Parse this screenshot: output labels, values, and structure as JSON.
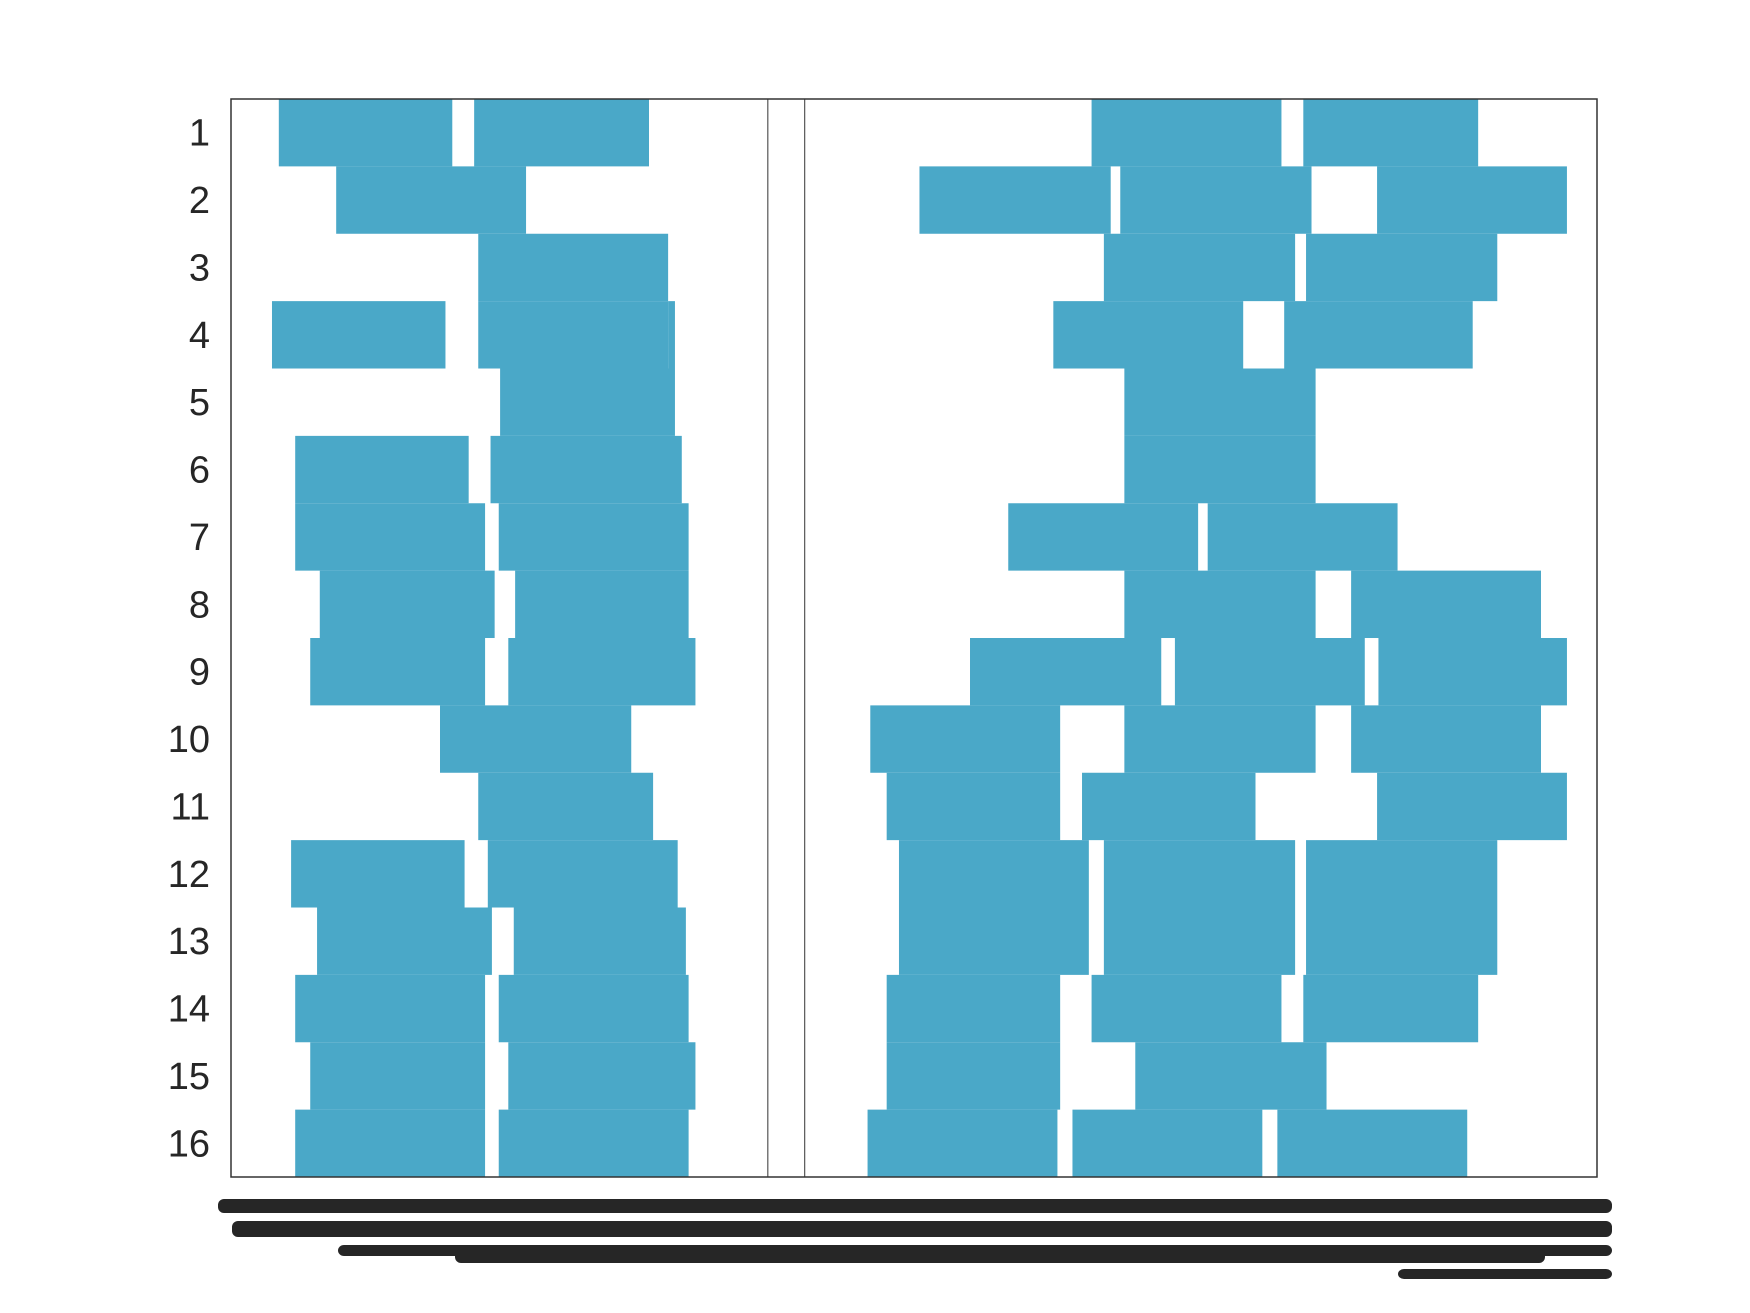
{
  "chart_data": {
    "type": "bar",
    "orientation": "horizontal-broken",
    "color": "#4aa8c8",
    "frame_color": "#333333",
    "categories": [
      "1",
      "2",
      "3",
      "4",
      "5",
      "6",
      "7",
      "8",
      "9",
      "10",
      "11",
      "12",
      "13",
      "14",
      "15",
      "16"
    ],
    "xlim": [
      0,
      100
    ],
    "gap": [
      39.3,
      42.0
    ],
    "x_tick_labels_legible": false,
    "rows": [
      {
        "row": "1",
        "segments": [
          [
            3.5,
            16.2
          ],
          [
            17.8,
            30.6
          ],
          [
            63.0,
            76.9
          ],
          [
            78.5,
            91.3
          ]
        ]
      },
      {
        "row": "2",
        "segments": [
          [
            7.7,
            21.6
          ],
          [
            50.4,
            64.4
          ],
          [
            65.1,
            79.1
          ],
          [
            83.9,
            97.8
          ]
        ]
      },
      {
        "row": "3",
        "segments": [
          [
            18.1,
            32.0
          ],
          [
            63.9,
            77.9
          ],
          [
            78.7,
            92.7
          ]
        ]
      },
      {
        "row": "4",
        "segments": [
          [
            3.0,
            15.7
          ],
          [
            18.1,
            32.0
          ],
          [
            32.0,
            32.5
          ],
          [
            60.2,
            74.1
          ],
          [
            77.1,
            90.9
          ]
        ]
      },
      {
        "row": "5",
        "segments": [
          [
            19.7,
            32.5
          ],
          [
            65.4,
            79.4
          ]
        ]
      },
      {
        "row": "6",
        "segments": [
          [
            4.7,
            17.4
          ],
          [
            19.0,
            33.0
          ],
          [
            65.4,
            79.4
          ]
        ]
      },
      {
        "row": "7",
        "segments": [
          [
            4.7,
            18.6
          ],
          [
            19.6,
            33.5
          ],
          [
            56.9,
            70.8
          ],
          [
            71.5,
            85.4
          ]
        ]
      },
      {
        "row": "8",
        "segments": [
          [
            6.5,
            19.3
          ],
          [
            20.8,
            33.5
          ],
          [
            65.4,
            79.4
          ],
          [
            82.0,
            95.9
          ]
        ]
      },
      {
        "row": "9",
        "segments": [
          [
            5.8,
            18.6
          ],
          [
            20.3,
            34.0
          ],
          [
            54.1,
            68.1
          ],
          [
            69.1,
            83.0
          ],
          [
            84.0,
            97.8
          ]
        ]
      },
      {
        "row": "10",
        "segments": [
          [
            15.3,
            29.3
          ],
          [
            46.8,
            60.7
          ],
          [
            65.4,
            79.4
          ],
          [
            82.0,
            95.9
          ]
        ]
      },
      {
        "row": "11",
        "segments": [
          [
            18.1,
            30.9
          ],
          [
            48.0,
            60.7
          ],
          [
            62.3,
            75.0
          ],
          [
            83.9,
            97.8
          ]
        ]
      },
      {
        "row": "12",
        "segments": [
          [
            4.4,
            17.1
          ],
          [
            18.8,
            32.7
          ],
          [
            48.9,
            62.8
          ],
          [
            63.9,
            77.9
          ],
          [
            78.7,
            92.7
          ]
        ]
      },
      {
        "row": "13",
        "segments": [
          [
            6.3,
            19.1
          ],
          [
            20.7,
            33.3
          ],
          [
            48.9,
            62.8
          ],
          [
            63.9,
            77.9
          ],
          [
            78.7,
            92.7
          ]
        ]
      },
      {
        "row": "14",
        "segments": [
          [
            4.7,
            18.6
          ],
          [
            19.6,
            33.5
          ],
          [
            48.0,
            60.7
          ],
          [
            63.0,
            76.9
          ],
          [
            78.5,
            91.3
          ]
        ]
      },
      {
        "row": "15",
        "segments": [
          [
            5.8,
            18.6
          ],
          [
            20.3,
            34.0
          ],
          [
            48.0,
            60.7
          ],
          [
            66.2,
            80.2
          ]
        ]
      },
      {
        "row": "16",
        "segments": [
          [
            4.7,
            18.6
          ],
          [
            19.6,
            33.5
          ],
          [
            46.6,
            60.5
          ],
          [
            61.6,
            75.5
          ],
          [
            76.6,
            90.5
          ]
        ]
      }
    ]
  }
}
